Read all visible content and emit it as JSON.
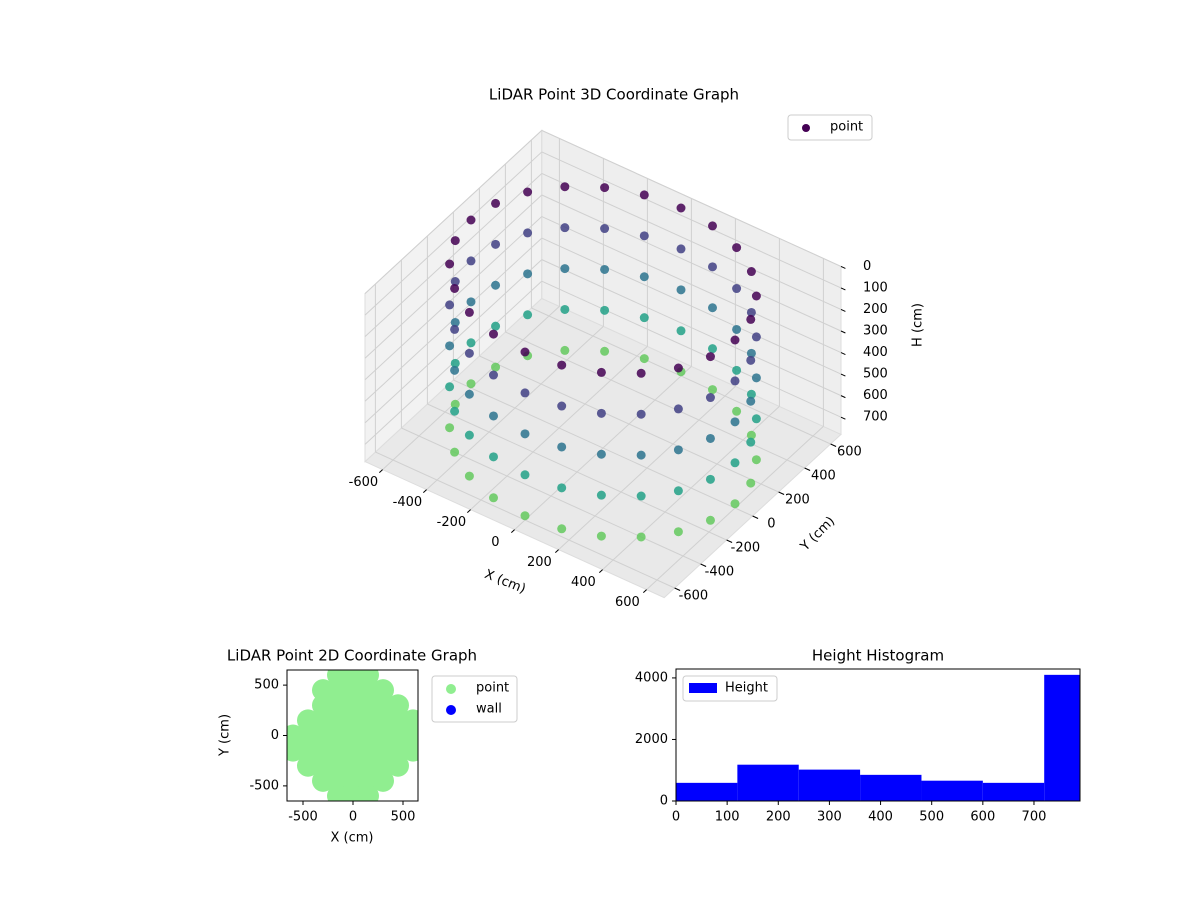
{
  "chart_data": [
    {
      "type": "scatter3d",
      "title": "LiDAR Point 3D Coordinate Graph",
      "xlabel": "X (cm)",
      "ylabel": "Y (cm)",
      "zlabel": "H (cm)",
      "colormap": "viridis",
      "z_inverted": true,
      "legend_loc": "upper right",
      "xlim": [
        -680,
        680
      ],
      "ylim": [
        -680,
        680
      ],
      "zlim": [
        0,
        780
      ],
      "xticks": [
        -600,
        -400,
        -200,
        0,
        200,
        400,
        600
      ],
      "yticks": [
        -600,
        -400,
        -200,
        0,
        200,
        400,
        600
      ],
      "zticks": [
        0,
        100,
        200,
        300,
        400,
        500,
        600,
        700
      ],
      "series": [
        {
          "name": "point",
          "x": [
            600,
            580,
            520,
            424,
            300,
            155,
            0,
            -155,
            -300,
            -424,
            -520,
            -580,
            -600,
            -580,
            -520,
            -424,
            -300,
            -155,
            0,
            155,
            300,
            424,
            520,
            580,
            600,
            580,
            520,
            424,
            300,
            155,
            0,
            -155,
            -300,
            -424,
            -520,
            -580,
            -600,
            -580,
            -520,
            -424,
            -300,
            -155,
            0,
            155,
            300,
            424,
            520,
            580,
            600,
            580,
            520,
            424,
            300,
            155,
            0,
            -155,
            -300,
            -424,
            -520,
            -580,
            -600,
            -580,
            -520,
            -424,
            -300,
            -155,
            0,
            155,
            300,
            424,
            520,
            580,
            600,
            580,
            520,
            424,
            300,
            155,
            0,
            -155,
            -300,
            -424,
            -520,
            -580,
            -600,
            -580,
            -520,
            -424,
            -300,
            -155,
            0,
            155,
            300,
            424,
            520,
            580,
            600,
            580,
            520,
            424,
            300,
            155,
            0,
            -155,
            -300,
            -424,
            -520,
            -580,
            -600,
            -580,
            -520,
            -424,
            -300,
            -155,
            0,
            155,
            300,
            424,
            520,
            580
          ],
          "y": [
            0,
            155,
            300,
            424,
            520,
            580,
            600,
            580,
            520,
            424,
            300,
            155,
            0,
            -155,
            -300,
            -424,
            -520,
            -580,
            -600,
            -580,
            -520,
            -424,
            -300,
            -155,
            0,
            155,
            300,
            424,
            520,
            580,
            600,
            580,
            520,
            424,
            300,
            155,
            0,
            -155,
            -300,
            -424,
            -520,
            -580,
            -600,
            -580,
            -520,
            -424,
            -300,
            -155,
            0,
            155,
            300,
            424,
            520,
            580,
            600,
            580,
            520,
            424,
            300,
            155,
            0,
            -155,
            -300,
            -424,
            -520,
            -580,
            -600,
            -580,
            -520,
            -424,
            -300,
            -155,
            0,
            155,
            300,
            424,
            520,
            580,
            600,
            580,
            520,
            424,
            300,
            155,
            0,
            -155,
            -300,
            -424,
            -520,
            -580,
            -600,
            -580,
            -520,
            -424,
            -300,
            -155,
            0,
            155,
            300,
            424,
            520,
            580,
            600,
            580,
            520,
            424,
            300,
            155,
            0,
            -155,
            -300,
            -424,
            -520,
            -580,
            -600,
            -580,
            -520,
            -424,
            -300,
            -155
          ],
          "z": [
            0,
            0,
            0,
            0,
            0,
            0,
            0,
            0,
            0,
            0,
            0,
            0,
            0,
            0,
            0,
            0,
            0,
            0,
            0,
            0,
            0,
            0,
            0,
            0,
            190,
            190,
            190,
            190,
            190,
            190,
            190,
            190,
            190,
            190,
            190,
            190,
            190,
            190,
            190,
            190,
            190,
            190,
            190,
            190,
            190,
            190,
            190,
            190,
            380,
            380,
            380,
            380,
            380,
            380,
            380,
            380,
            380,
            380,
            380,
            380,
            380,
            380,
            380,
            380,
            380,
            380,
            380,
            380,
            380,
            380,
            380,
            380,
            570,
            570,
            570,
            570,
            570,
            570,
            570,
            570,
            570,
            570,
            570,
            570,
            570,
            570,
            570,
            570,
            570,
            570,
            570,
            570,
            570,
            570,
            570,
            570,
            760,
            760,
            760,
            760,
            760,
            760,
            760,
            760,
            760,
            760,
            760,
            760,
            760,
            760,
            760,
            760,
            760,
            760,
            760,
            760,
            760,
            760,
            760,
            760
          ]
        }
      ]
    },
    {
      "type": "scatter",
      "title": "LiDAR Point 2D Coordinate Graph",
      "xlabel": "X (cm)",
      "ylabel": "Y (cm)",
      "legend_loc": "outside upper right",
      "xlim": [
        -660,
        650
      ],
      "ylim": [
        -650,
        650
      ],
      "xticks": [
        -500,
        0,
        500
      ],
      "yticks": [
        -500,
        0,
        500
      ],
      "series": [
        {
          "name": "point",
          "color": "#90ee90",
          "x": [
            -150,
            0,
            150,
            -300,
            -150,
            0,
            150,
            300,
            -300,
            -150,
            0,
            150,
            300,
            450,
            -450,
            -300,
            -150,
            0,
            150,
            300,
            450,
            600,
            -600,
            -450,
            -300,
            -150,
            0,
            150,
            300,
            450,
            600,
            -600,
            -450,
            -300,
            -150,
            0,
            150,
            300,
            450,
            600,
            -450,
            -300,
            -150,
            0,
            150,
            300,
            450,
            -300,
            -150,
            0,
            150,
            300,
            -150,
            0,
            150
          ],
          "y": [
            600,
            600,
            600,
            450,
            450,
            450,
            450,
            450,
            300,
            300,
            300,
            300,
            300,
            300,
            150,
            150,
            150,
            150,
            150,
            150,
            150,
            150,
            0,
            0,
            0,
            0,
            0,
            0,
            0,
            0,
            0,
            -150,
            -150,
            -150,
            -150,
            -150,
            -150,
            -150,
            -150,
            -150,
            -300,
            -300,
            -300,
            -300,
            -300,
            -300,
            -300,
            -450,
            -450,
            -450,
            -450,
            -450,
            -600,
            -600,
            -600
          ]
        },
        {
          "name": "wall",
          "color": "#0000ff",
          "x": [],
          "y": []
        }
      ]
    },
    {
      "type": "histogram",
      "title": "Height Histogram",
      "name": "Height",
      "color": "#0000ff",
      "legend_loc": "upper left",
      "bins": [
        0,
        120,
        240,
        360,
        480,
        600,
        720,
        790
      ],
      "values": [
        590,
        1180,
        1020,
        850,
        660,
        590,
        4100
      ],
      "xlim": [
        0,
        790
      ],
      "ylim": [
        0,
        4290
      ],
      "xticks": [
        0,
        100,
        200,
        300,
        400,
        500,
        600,
        700
      ],
      "yticks": [
        0,
        2000,
        4000
      ]
    }
  ]
}
